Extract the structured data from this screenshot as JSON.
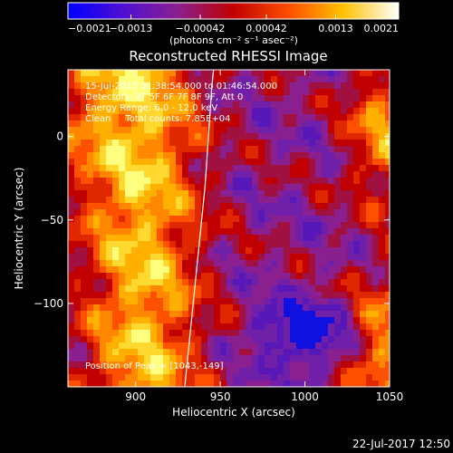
{
  "chart_data": {
    "type": "heatmap",
    "title": "Reconstructed RHESSI Image",
    "xlabel": "Heliocentric X (arcsec)",
    "ylabel": "Heliocentric Y (arcsec)",
    "xlim": [
      860,
      1050
    ],
    "ylim": [
      -150,
      40
    ],
    "xticks": [
      900,
      950,
      1000,
      1050
    ],
    "xtick_labels": [
      "900",
      "950",
      "1000",
      "1050"
    ],
    "yticks": [
      0,
      -50,
      -100
    ],
    "ytick_labels": [
      "0",
      "−50",
      "−100"
    ],
    "colorbar": {
      "range": [
        -0.0021,
        0.0021
      ],
      "tick_values": [
        -0.0021,
        -0.0013,
        -0.00042,
        0.00042,
        0.0013,
        0.0021
      ],
      "tick_labels": [
        "−0.0021",
        "−0.0013",
        "−0.00042",
        "0.00042",
        "0.0013",
        "0.0021"
      ],
      "units": "(photons cm⁻² s⁻¹ asec⁻²)",
      "colormap": [
        "#0000ff",
        "#7020c0",
        "#b00000",
        "#ff4000",
        "#ffa000",
        "#ffff60",
        "#ffffff"
      ]
    },
    "annotations": [
      "15-Jul-2015 01:38:54.000 to 01:46:54.000",
      "Detectors: 3F 5F 6F 7F 8F 9F, Att 0",
      "Energy Range: 6.0 - 12.0 keV",
      "Clean     Total counts: 7.85E+04"
    ],
    "peak": [
      1043,
      -149
    ],
    "peak_label": "Position of Peak = [1043,-149]",
    "limb_curve": [
      [
        929,
        -150
      ],
      [
        932,
        -120
      ],
      [
        935,
        -90
      ],
      [
        938,
        -60
      ],
      [
        941,
        -30
      ],
      [
        943,
        0
      ],
      [
        945,
        30
      ],
      [
        946,
        40
      ]
    ]
  },
  "footer": {
    "timestamp": "22-Jul-2017 12:50"
  }
}
